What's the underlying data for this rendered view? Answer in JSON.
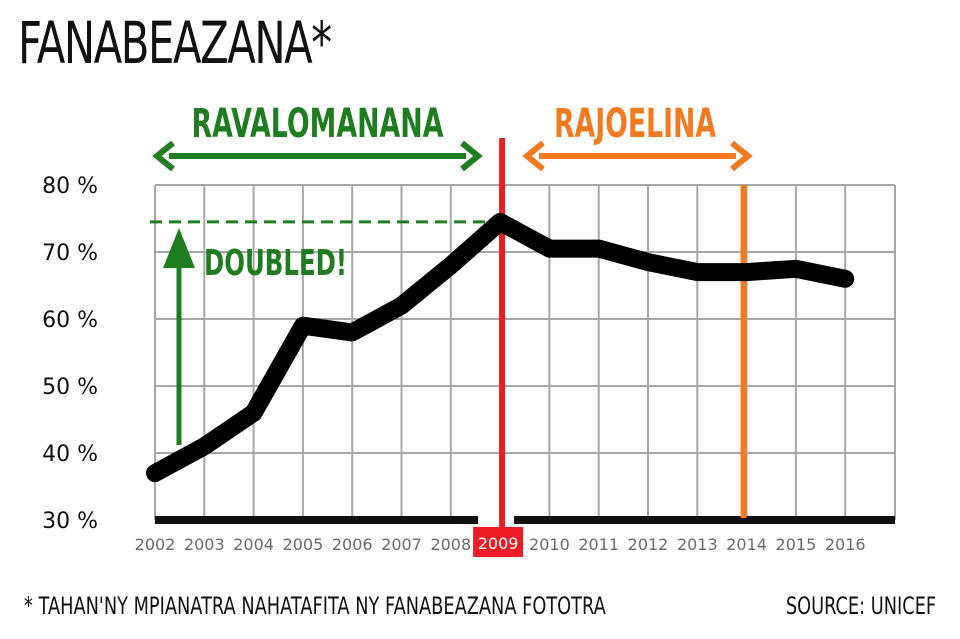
{
  "title": "FANABEAZANA*",
  "footnote": "* TAHAN'NY MPIANATRA NAHATAFITA NY FANABEAZANA FOTOTRA",
  "source": "SOURCE: UNICEF",
  "colors": {
    "line": "#000000",
    "grid": "#a6a6a6",
    "ravalomanana": "#1e7d1e",
    "rajoelina": "#f47a1f",
    "crisis": "#ee1c25"
  },
  "chart_data": {
    "type": "line",
    "title": "FANABEAZANA*",
    "xlabel": "",
    "ylabel": "",
    "categories": [
      "2002",
      "2003",
      "2004",
      "2005",
      "2006",
      "2007",
      "2008",
      "2009",
      "2010",
      "2011",
      "2012",
      "2013",
      "2014",
      "2015",
      "2016"
    ],
    "series": [
      {
        "values": [
          37,
          41,
          46,
          59,
          58,
          62,
          68,
          74.5,
          70.5,
          70.5,
          68.5,
          67,
          67,
          67.5,
          66
        ]
      }
    ],
    "ylim": [
      30,
      80
    ],
    "yticks": [
      "30 %",
      "40 %",
      "50 %",
      "60 %",
      "70 %",
      "80 %"
    ],
    "grid": true,
    "highlight_year": "2009",
    "marker_year": "2014",
    "annotations": {
      "ravalomanana": {
        "label": "RAVALOMANANA",
        "from": "2002",
        "to": "2008"
      },
      "rajoelina": {
        "label": "RAJOELINA",
        "from": "2009",
        "to": "2014"
      },
      "doubled": {
        "label": "DOUBLED!",
        "from_value": 37,
        "to_value": 74.5
      }
    }
  }
}
